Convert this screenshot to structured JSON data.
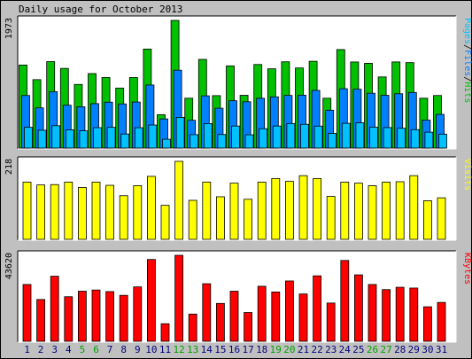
{
  "title": "Daily usage for October 2013",
  "colors": {
    "pages": "#00c0ff",
    "files": "#0080ff",
    "hits": "#00c000",
    "visits": "#ffff00",
    "kbytes": "#ff0000",
    "weekday_label": "#000080",
    "weekend_label": "#00a000"
  },
  "chart_data": [
    {
      "type": "bar",
      "panel": "hits-files-pages",
      "max_label": "1973",
      "legend": [
        {
          "text": "Pages",
          "color": "#00c0ff"
        },
        {
          "text": "/",
          "color": "#000000"
        },
        {
          "text": "Files",
          "color": "#0080ff"
        },
        {
          "text": "/",
          "color": "#000000"
        },
        {
          "text": "Hits",
          "color": "#00c000"
        }
      ],
      "ylim": [
        0,
        1973
      ],
      "categories": [
        "1",
        "2",
        "3",
        "4",
        "5",
        "6",
        "7",
        "8",
        "9",
        "10",
        "11",
        "12",
        "13",
        "14",
        "15",
        "16",
        "17",
        "18",
        "19",
        "20",
        "21",
        "22",
        "23",
        "24",
        "25",
        "26",
        "27",
        "28",
        "29",
        "30",
        "31"
      ],
      "series": [
        {
          "name": "Hits",
          "values": [
            1283,
            1057,
            1336,
            1231,
            983,
            1151,
            1091,
            927,
            1090,
            1530,
            516,
            1973,
            770,
            1370,
            810,
            1270,
            815,
            1291,
            1225,
            1333,
            1238,
            1341,
            770,
            1522,
            1330,
            1310,
            1099,
            1331,
            1320,
            770,
            812
          ]
        },
        {
          "name": "Files",
          "values": [
            812,
            621,
            872,
            662,
            638,
            686,
            709,
            682,
            711,
            974,
            450,
            1203,
            429,
            807,
            615,
            731,
            715,
            769,
            791,
            813,
            817,
            891,
            585,
            917,
            909,
            847,
            815,
            839,
            859,
            432,
            520
          ]
        },
        {
          "name": "Pages",
          "values": [
            320,
            275,
            345,
            281,
            266,
            315,
            320,
            217,
            314,
            356,
            136,
            474,
            207,
            378,
            209,
            340,
            205,
            299,
            340,
            379,
            367,
            339,
            226,
            382,
            391,
            322,
            316,
            306,
            285,
            245,
            215
          ]
        }
      ]
    },
    {
      "type": "bar",
      "panel": "visits",
      "max_label": "218",
      "legend": [
        {
          "text": "Visits",
          "color": "#ffff00"
        }
      ],
      "ylim": [
        0,
        218
      ],
      "categories": [
        "1",
        "2",
        "3",
        "4",
        "5",
        "6",
        "7",
        "8",
        "9",
        "10",
        "11",
        "12",
        "13",
        "14",
        "15",
        "16",
        "17",
        "18",
        "19",
        "20",
        "21",
        "22",
        "23",
        "24",
        "25",
        "26",
        "27",
        "28",
        "29",
        "30",
        "31"
      ],
      "series": [
        {
          "name": "Visits",
          "values": [
            160,
            152,
            153,
            160,
            145,
            160,
            151,
            122,
            150,
            176,
            95,
            218,
            109,
            160,
            119,
            157,
            112,
            160,
            170,
            162,
            178,
            170,
            120,
            160,
            157,
            150,
            160,
            161,
            178,
            108,
            116
          ]
        }
      ]
    },
    {
      "type": "bar",
      "panel": "kbytes",
      "max_label": "43620",
      "legend": [
        {
          "text": "KBytes",
          "color": "#ff0000"
        }
      ],
      "ylim": [
        0,
        43620
      ],
      "categories": [
        "1",
        "2",
        "3",
        "4",
        "5",
        "6",
        "7",
        "8",
        "9",
        "10",
        "11",
        "12",
        "13",
        "14",
        "15",
        "16",
        "17",
        "18",
        "19",
        "20",
        "21",
        "22",
        "23",
        "24",
        "25",
        "26",
        "27",
        "28",
        "29",
        "30",
        "31"
      ],
      "series": [
        {
          "name": "KBytes",
          "values": [
            28800,
            21200,
            33000,
            22600,
            25400,
            26000,
            25200,
            23300,
            27600,
            41500,
            8900,
            43620,
            13800,
            29200,
            19200,
            25400,
            14600,
            27900,
            25000,
            30600,
            24000,
            33200,
            19400,
            41000,
            33700,
            28800,
            26200,
            27400,
            27000,
            17500,
            19700
          ]
        }
      ]
    }
  ],
  "days": [
    {
      "label": "1",
      "weekend": false
    },
    {
      "label": "2",
      "weekend": false
    },
    {
      "label": "3",
      "weekend": false
    },
    {
      "label": "4",
      "weekend": false
    },
    {
      "label": "5",
      "weekend": true
    },
    {
      "label": "6",
      "weekend": true
    },
    {
      "label": "7",
      "weekend": false
    },
    {
      "label": "8",
      "weekend": false
    },
    {
      "label": "9",
      "weekend": false
    },
    {
      "label": "10",
      "weekend": false
    },
    {
      "label": "11",
      "weekend": false
    },
    {
      "label": "12",
      "weekend": true
    },
    {
      "label": "13",
      "weekend": true
    },
    {
      "label": "14",
      "weekend": false
    },
    {
      "label": "15",
      "weekend": false
    },
    {
      "label": "16",
      "weekend": false
    },
    {
      "label": "17",
      "weekend": false
    },
    {
      "label": "18",
      "weekend": false
    },
    {
      "label": "19",
      "weekend": true
    },
    {
      "label": "20",
      "weekend": true
    },
    {
      "label": "21",
      "weekend": false
    },
    {
      "label": "22",
      "weekend": false
    },
    {
      "label": "23",
      "weekend": false
    },
    {
      "label": "24",
      "weekend": false
    },
    {
      "label": "25",
      "weekend": false
    },
    {
      "label": "26",
      "weekend": true
    },
    {
      "label": "27",
      "weekend": true
    },
    {
      "label": "28",
      "weekend": false
    },
    {
      "label": "29",
      "weekend": false
    },
    {
      "label": "30",
      "weekend": false
    },
    {
      "label": "31",
      "weekend": false
    }
  ]
}
